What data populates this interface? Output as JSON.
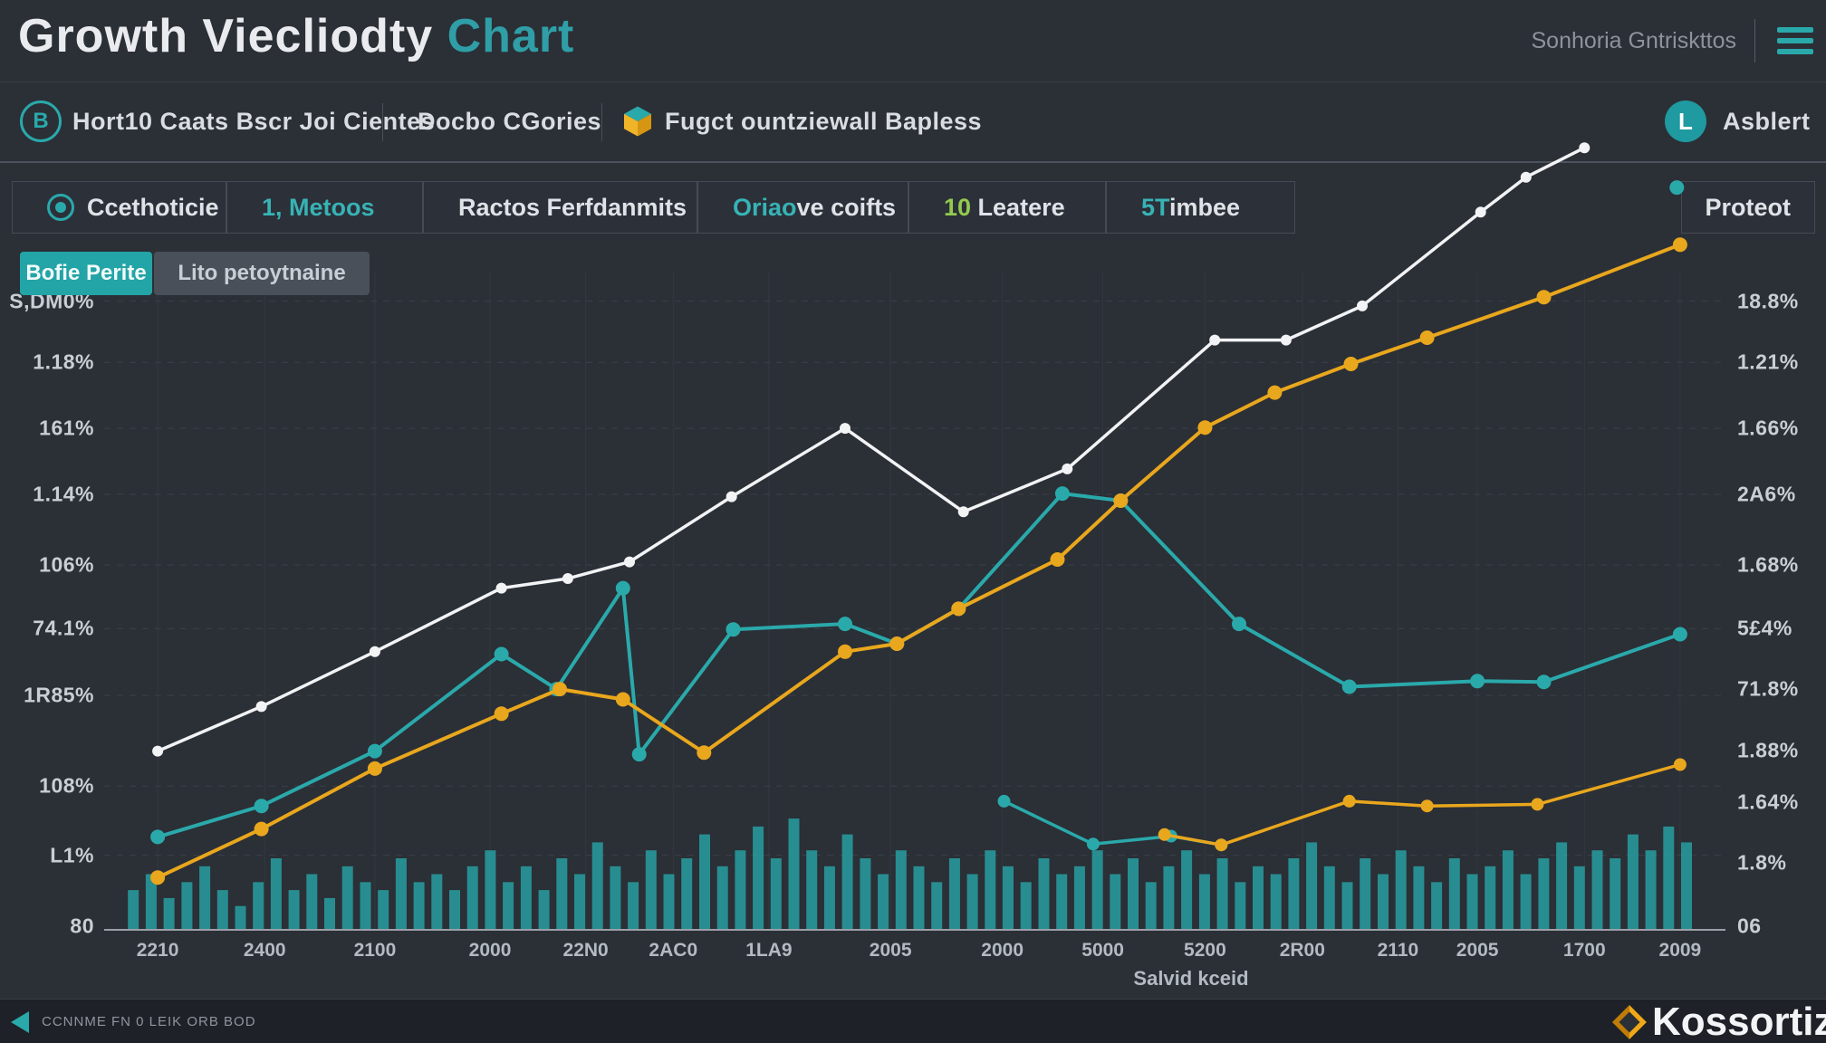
{
  "header": {
    "title_main": "Growth Viecliodty",
    "title_accent": "Chart",
    "right_text": "Sonhoria Gntriskttos"
  },
  "toolbar": {
    "item1": {
      "icon_letter": "B",
      "label": "Hort10 Caats Bscr Joi Cientes"
    },
    "item2": {
      "label": "Docbo CGories"
    },
    "item3": {
      "label": "Fugct ountziewall Bapless"
    },
    "user": {
      "avatar_letter": "L",
      "label": "Asblert"
    }
  },
  "nav": {
    "items": [
      {
        "name": "ccethoticie",
        "icon": "target-icon",
        "parts": [
          {
            "t": "Ccethoticie",
            "c": "white"
          }
        ]
      },
      {
        "name": "metoos",
        "parts": [
          {
            "t": "1, Metoos",
            "c": "teal"
          }
        ]
      },
      {
        "name": "ractos-ferfdanmits",
        "parts": [
          {
            "t": "Ractos Ferfdanmits",
            "c": "white"
          }
        ]
      },
      {
        "name": "oriaove-coifts",
        "parts": [
          {
            "t": "Oriao",
            "c": "teal"
          },
          {
            "t": "ve coifts",
            "c": "white"
          }
        ]
      },
      {
        "name": "leatere",
        "parts": [
          {
            "t": "10",
            "c": "green"
          },
          {
            "t": " Leatere",
            "c": "white"
          }
        ]
      },
      {
        "name": "stimbee",
        "parts": [
          {
            "t": "5T",
            "c": "teal"
          },
          {
            "t": "imbee",
            "c": "white"
          }
        ]
      },
      {
        "name": "proteot",
        "align": "right",
        "parts": [
          {
            "t": "Proteot",
            "c": "white"
          }
        ]
      }
    ]
  },
  "tabs": {
    "items": [
      {
        "label": "Bofie Perite"
      },
      {
        "label": "Lito petoytnaine"
      }
    ]
  },
  "chart_data": {
    "type": "line+bar",
    "title": "Growth Viecliodty Chart",
    "xlabel": "Salvid kceid",
    "ylabel": "",
    "grid": true,
    "legend": false,
    "x_axis": {
      "labels": [
        "2210",
        "2400",
        "2100",
        "2000",
        "22N0",
        "2AC0",
        "1LA9",
        "2005",
        "2000",
        "5000",
        "5200",
        "2R00",
        "2110",
        "2005",
        "1700",
        "2009"
      ],
      "pos_pct": [
        3.3,
        9.9,
        16.7,
        23.8,
        29.7,
        35.1,
        41.0,
        48.5,
        55.4,
        61.6,
        67.9,
        73.9,
        79.8,
        84.7,
        91.3,
        97.2
      ]
    },
    "y_axis_left": {
      "labels": [
        "S,DM0%",
        "1.18%",
        "161%",
        "1.14%",
        "106%",
        "74.1%",
        "1R85%",
        "108%",
        "L1%",
        "80"
      ],
      "pos_pct": [
        20.8,
        28.5,
        36.8,
        45.1,
        54.0,
        62.0,
        70.4,
        81.8,
        90.5,
        99.4
      ]
    },
    "y_axis_right": {
      "labels": [
        "18.8%",
        "1.21%",
        "1.66%",
        "2A6%",
        "1.68%",
        "5£4%",
        "71.8%",
        "1.88%",
        "1.64%",
        "1.8%",
        "06"
      ],
      "pos_pct": [
        20.8,
        28.5,
        36.8,
        45.1,
        54.0,
        62.0,
        69.6,
        77.3,
        83.8,
        91.5,
        99.4
      ]
    },
    "grid_y_pct": [
      20.8,
      28.5,
      36.8,
      45.1,
      54.0,
      62.0,
      70.4,
      81.8,
      90.5
    ],
    "series": [
      {
        "name": "white-line",
        "color": "#f2f3f5",
        "width": 3.5,
        "dot_r": 6,
        "points": [
          [
            3.3,
            22.6
          ],
          [
            9.7,
            28.2
          ],
          [
            16.7,
            35.1
          ],
          [
            24.5,
            43.1
          ],
          [
            28.6,
            44.3
          ],
          [
            32.4,
            46.4
          ],
          [
            38.7,
            54.6
          ],
          [
            45.7,
            63.2
          ],
          [
            53,
            52.7
          ],
          [
            59.4,
            58.1
          ],
          [
            68.5,
            74.3
          ],
          [
            72.9,
            74.3
          ],
          [
            77.6,
            78.6
          ],
          [
            84.9,
            90.4
          ],
          [
            87.7,
            94.8
          ],
          [
            91.3,
            98.5
          ]
        ]
      },
      {
        "name": "teal-line",
        "color": "#2aa9ab",
        "width": 4,
        "dot_r": 8,
        "points": [
          [
            3.3,
            11.8
          ],
          [
            9.7,
            15.7
          ],
          [
            16.7,
            22.6
          ],
          [
            24.5,
            34.8
          ],
          [
            27.9,
            30.4
          ],
          [
            32,
            43.1
          ],
          [
            33,
            22.2
          ],
          [
            38.8,
            37.9
          ],
          [
            45.7,
            38.6
          ],
          [
            48.9,
            36.1
          ],
          [
            52.7,
            40.5
          ],
          [
            59.1,
            55
          ],
          [
            62.7,
            54.1
          ],
          [
            70,
            38.6
          ],
          [
            76.8,
            30.7
          ],
          [
            84.7,
            31.4
          ],
          [
            88.8,
            31.3
          ],
          [
            97.2,
            37.3
          ]
        ]
      },
      {
        "name": "yellow-line",
        "color": "#e9a71d",
        "width": 4,
        "dot_r": 8,
        "points": [
          [
            3.3,
            6.7
          ],
          [
            9.7,
            12.8
          ],
          [
            16.7,
            20.4
          ],
          [
            24.5,
            27.3
          ],
          [
            28.1,
            30.4
          ],
          [
            32,
            29.1
          ],
          [
            37,
            22.4
          ],
          [
            45.7,
            35.1
          ],
          [
            48.9,
            36.1
          ],
          [
            52.7,
            40.5
          ],
          [
            58.8,
            46.7
          ],
          [
            62.7,
            54.1
          ],
          [
            67.9,
            63.3
          ],
          [
            72.2,
            67.7
          ],
          [
            76.9,
            71.3
          ],
          [
            81.6,
            74.6
          ],
          [
            88.8,
            79.7
          ],
          [
            97.2,
            86.3
          ]
        ]
      },
      {
        "name": "teal-low-line",
        "color": "#2aa9ab",
        "width": 3.5,
        "dot_r": 7,
        "points": [
          [
            55.5,
            16.3
          ],
          [
            61,
            10.9
          ],
          [
            65.8,
            11.9
          ],
          [
            68.9,
            10.8
          ]
        ]
      },
      {
        "name": "yellow-low-line",
        "color": "#e9a71d",
        "width": 3.5,
        "dot_r": 7,
        "points": [
          [
            65.4,
            12.1
          ],
          [
            68.9,
            10.8
          ],
          [
            76.8,
            16.3
          ],
          [
            81.6,
            15.7
          ],
          [
            88.4,
            15.9
          ],
          [
            97.2,
            20.9
          ]
        ]
      },
      {
        "name": "teal-end-marker",
        "color": "#2aa9ab",
        "width": 3,
        "dot_r": 8,
        "points": [
          [
            97,
            93.5
          ]
        ]
      }
    ],
    "bars": {
      "color": "#27989b",
      "start_pct": 1.8,
      "end_pct": 97.6,
      "values": [
        5,
        7,
        4,
        6,
        8,
        5,
        3,
        6,
        9,
        5,
        7,
        4,
        8,
        6,
        5,
        9,
        6,
        7,
        5,
        8,
        10,
        6,
        8,
        5,
        9,
        7,
        11,
        8,
        6,
        10,
        7,
        9,
        12,
        8,
        10,
        13,
        9,
        14,
        10,
        8,
        12,
        9,
        7,
        10,
        8,
        6,
        9,
        7,
        10,
        8,
        6,
        9,
        7,
        8,
        10,
        7,
        9,
        6,
        8,
        10,
        7,
        9,
        6,
        8,
        7,
        9,
        11,
        8,
        6,
        9,
        7,
        10,
        8,
        6,
        9,
        7,
        8,
        10,
        7,
        9,
        11,
        8,
        10,
        9,
        12,
        10,
        13,
        11
      ]
    }
  },
  "footer": {
    "left_text": "CCNNME FN 0 LEIK ORB BOD",
    "brand_text": "Kossortiz"
  },
  "colors": {
    "accent_teal": "#2aa9ab",
    "accent_yellow": "#e9a71d",
    "bg": "#2b2f36"
  }
}
